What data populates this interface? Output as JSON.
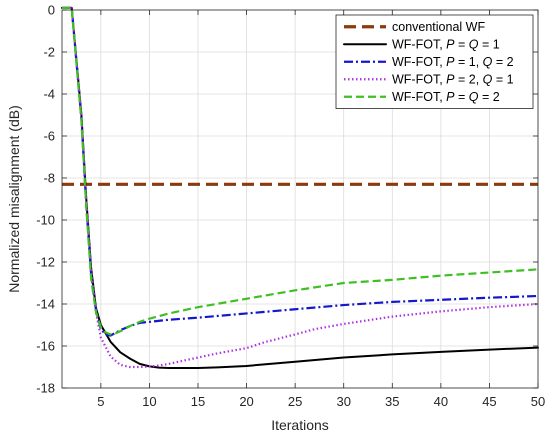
{
  "chart_data": {
    "type": "line",
    "title": "",
    "xlabel": "Iterations",
    "ylabel": "Normalized misalignment (dB)",
    "xlim": [
      1,
      50
    ],
    "ylim": [
      -18,
      0
    ],
    "xticks": [
      5,
      10,
      15,
      20,
      25,
      30,
      35,
      40,
      45,
      50
    ],
    "yticks": [
      0,
      -2,
      -4,
      -6,
      -8,
      -10,
      -12,
      -14,
      -16,
      -18
    ],
    "grid": true,
    "legend_position": "top-right",
    "series": [
      {
        "name": "conventional WF",
        "legend": {
          "prefix": "conventional WF",
          "parts": []
        },
        "color": "#8B3A0E",
        "style": "dash-thick",
        "x": [
          1,
          50
        ],
        "y": [
          -8.3,
          -8.3
        ]
      },
      {
        "name": "WF-FOT, P = Q = 1",
        "legend": {
          "prefix": "WF-FOT, ",
          "parts": [
            [
              "P",
              true
            ],
            [
              " = ",
              false
            ],
            [
              "Q",
              true
            ],
            [
              " = 1",
              false
            ]
          ]
        },
        "color": "#000000",
        "style": "solid",
        "x": [
          1,
          2,
          3,
          3.5,
          4,
          4.5,
          5,
          6,
          7,
          8,
          9,
          10,
          11,
          12,
          13,
          14,
          15,
          17,
          20,
          25,
          30,
          35,
          40,
          45,
          50
        ],
        "y": [
          0.1,
          0.1,
          -5.0,
          -9.0,
          -12.3,
          -14.2,
          -15.0,
          -15.8,
          -16.3,
          -16.6,
          -16.85,
          -16.97,
          -17.03,
          -17.05,
          -17.05,
          -17.05,
          -17.05,
          -17.02,
          -16.95,
          -16.75,
          -16.55,
          -16.4,
          -16.28,
          -16.17,
          -16.08
        ]
      },
      {
        "name": "WF-FOT, P = 1, Q = 2",
        "legend": {
          "prefix": "WF-FOT, ",
          "parts": [
            [
              "P",
              true
            ],
            [
              " = 1, ",
              false
            ],
            [
              "Q",
              true
            ],
            [
              " = 2",
              false
            ]
          ]
        },
        "color": "#1616CC",
        "style": "dashdot",
        "x": [
          1,
          2,
          3,
          3.5,
          4,
          4.5,
          5,
          5.5,
          6,
          7,
          8,
          9,
          10,
          12,
          15,
          20,
          25,
          30,
          35,
          40,
          45,
          50
        ],
        "y": [
          0.1,
          0.1,
          -5.2,
          -9.3,
          -12.6,
          -14.3,
          -15.2,
          -15.45,
          -15.5,
          -15.25,
          -15.05,
          -14.9,
          -14.85,
          -14.75,
          -14.65,
          -14.45,
          -14.25,
          -14.05,
          -13.9,
          -13.8,
          -13.7,
          -13.62
        ]
      },
      {
        "name": "WF-FOT, P = 2, Q = 1",
        "legend": {
          "prefix": "WF-FOT, ",
          "parts": [
            [
              "P",
              true
            ],
            [
              " = 2, ",
              false
            ],
            [
              "Q",
              true
            ],
            [
              " = 1",
              false
            ]
          ]
        },
        "color": "#B030E0",
        "style": "dot",
        "x": [
          1,
          2,
          3,
          3.5,
          4,
          4.5,
          5,
          6,
          7,
          8,
          9,
          10,
          11,
          12,
          13,
          15,
          17,
          20,
          22,
          25,
          27,
          30,
          35,
          40,
          45,
          50
        ],
        "y": [
          0.1,
          0.1,
          -5.1,
          -9.2,
          -12.5,
          -14.4,
          -15.6,
          -16.5,
          -16.9,
          -17.0,
          -17.0,
          -16.98,
          -16.93,
          -16.85,
          -16.75,
          -16.55,
          -16.35,
          -16.1,
          -15.8,
          -15.45,
          -15.2,
          -14.95,
          -14.6,
          -14.35,
          -14.15,
          -14.0
        ]
      },
      {
        "name": "WF-FOT, P = Q = 2",
        "legend": {
          "prefix": "WF-FOT, ",
          "parts": [
            [
              "P",
              true
            ],
            [
              " = ",
              false
            ],
            [
              "Q",
              true
            ],
            [
              " = 2",
              false
            ]
          ]
        },
        "color": "#3FBF24",
        "style": "dash",
        "x": [
          1,
          2,
          3,
          3.5,
          4,
          4.5,
          5,
          5.5,
          6,
          6.5,
          7,
          8,
          9,
          10,
          12,
          15,
          20,
          25,
          30,
          35,
          40,
          45,
          50
        ],
        "y": [
          0.1,
          0.1,
          -5.3,
          -9.4,
          -12.8,
          -14.4,
          -15.1,
          -15.35,
          -15.45,
          -15.4,
          -15.3,
          -15.05,
          -14.85,
          -14.7,
          -14.45,
          -14.15,
          -13.75,
          -13.35,
          -13.0,
          -12.85,
          -12.65,
          -12.5,
          -12.35
        ]
      }
    ]
  }
}
